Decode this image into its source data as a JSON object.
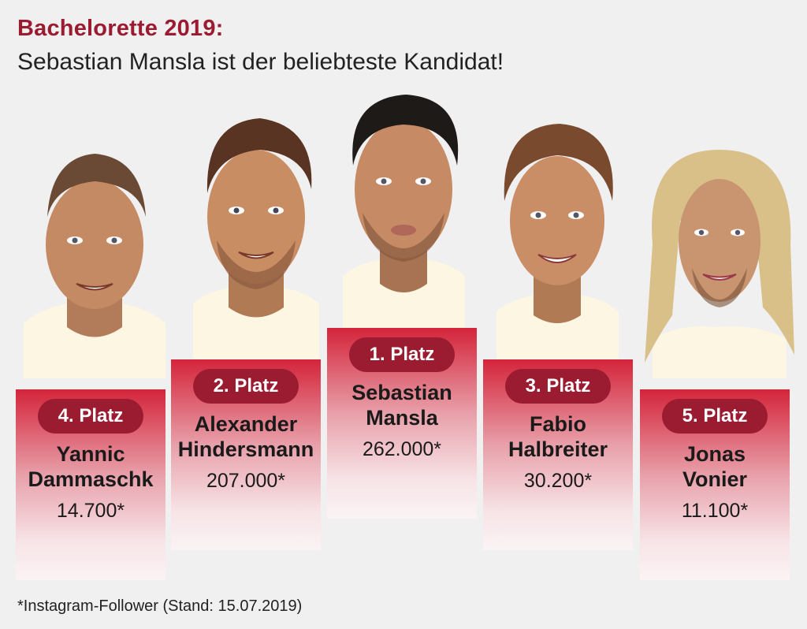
{
  "header": {
    "title": "Bachelorette 2019:",
    "subtitle": "Sebastian Mansla ist der beliebteste Kandidat!"
  },
  "footnote": "*Instagram-Follower (Stand: 15.07.2019)",
  "colors": {
    "accent": "#9b1b30",
    "card_top": "#d4243a",
    "card_bottom": "#fbf3f4",
    "background": "#f0f0f0"
  },
  "chart_data": {
    "type": "bar",
    "title": "Bachelorette 2019:",
    "subtitle": "Sebastian Mansla ist der beliebteste Kandidat!",
    "unit_note": "*Instagram-Follower (Stand: 15.07.2019)",
    "categories": [
      "Yannic Dammaschk",
      "Alexander Hindersmann",
      "Sebastian Mansla",
      "Fabio Halbreiter",
      "Jonas Vonier"
    ],
    "values": [
      14700,
      207000,
      262000,
      30200,
      11100
    ],
    "items": [
      {
        "rank_label": "4. Platz",
        "name_line1": "Yannic",
        "name_line2": "Dammaschk",
        "value_label": "14.700*",
        "rank": 4
      },
      {
        "rank_label": "2. Platz",
        "name_line1": "Alexander",
        "name_line2": "Hindersmann",
        "value_label": "207.000*",
        "rank": 2
      },
      {
        "rank_label": "1. Platz",
        "name_line1": "Sebastian",
        "name_line2": "Mansla",
        "value_label": "262.000*",
        "rank": 1
      },
      {
        "rank_label": "3. Platz",
        "name_line1": "Fabio",
        "name_line2": "Halbreiter",
        "value_label": "30.200*",
        "rank": 3
      },
      {
        "rank_label": "5. Platz",
        "name_line1": "Jonas",
        "name_line2": "Vonier",
        "value_label": "11.100*",
        "rank": 5
      }
    ]
  }
}
